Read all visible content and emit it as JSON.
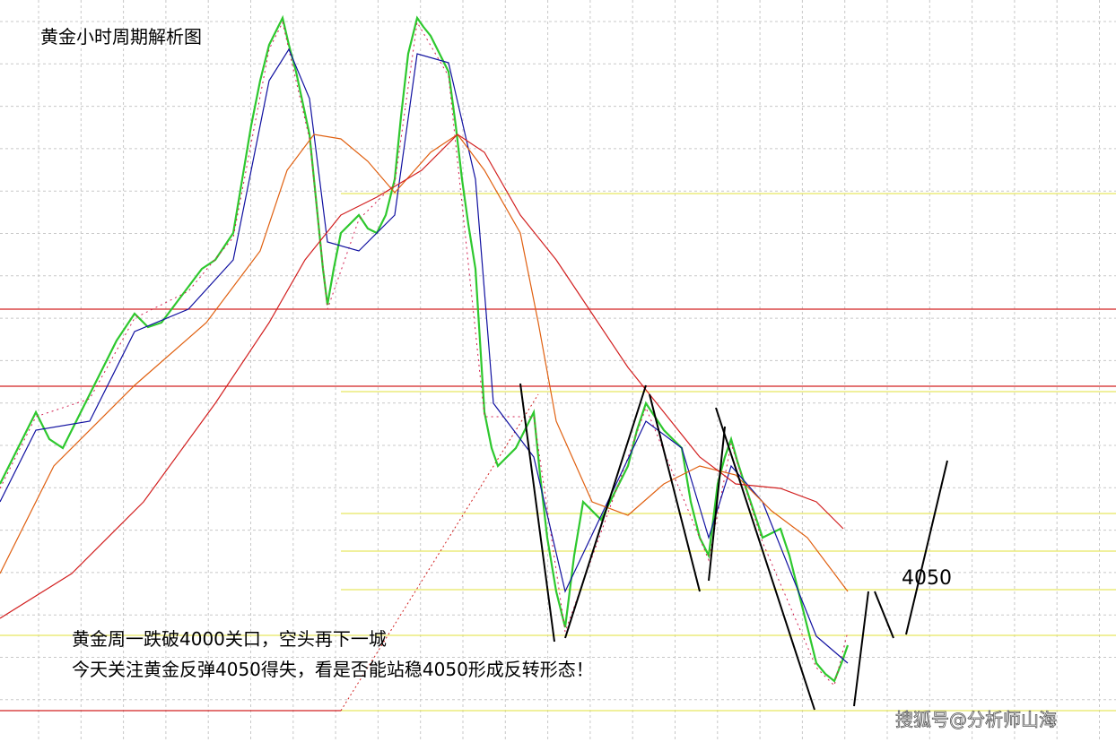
{
  "title": "黄金小时周期解析图",
  "level_label": "4050",
  "notes": [
    "黄金周一跌破4000关口，空头再下一城",
    "今天关注黄金反弹4050得失，看是否能站稳4050形成反转形态！"
  ],
  "watermark": "搜狐号@分析师山海"
}
